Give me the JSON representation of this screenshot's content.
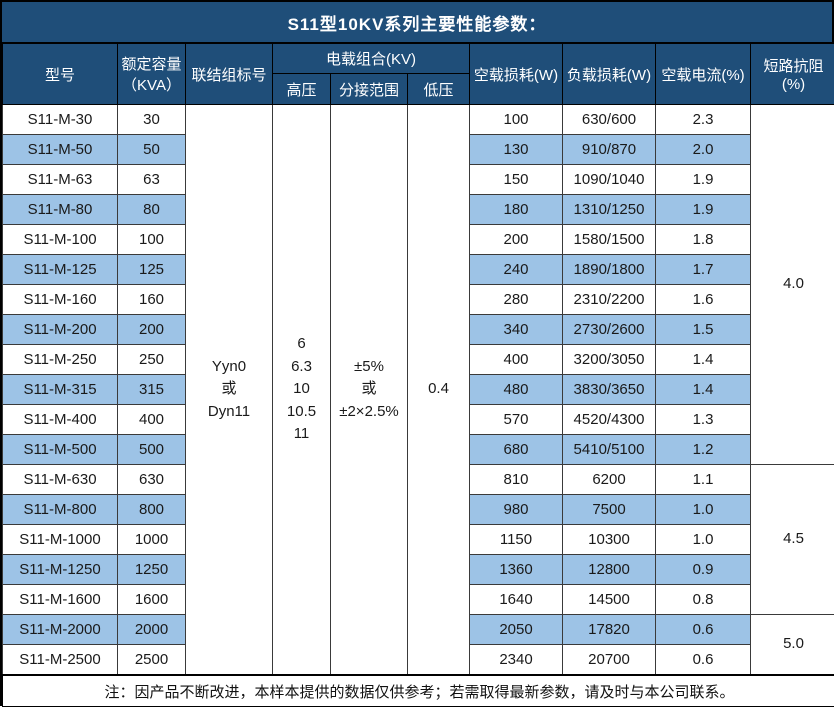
{
  "title": "S11型10KV系列主要性能参数：",
  "colors": {
    "header_bg": "#1F4E79",
    "stripe_bg": "#9DC3E6",
    "border": "#000000",
    "header_text": "#FFFFFF",
    "body_text": "#1A1A1A"
  },
  "header": {
    "model": "型号",
    "capacity_line1": "额定容量",
    "capacity_line2": "（KVA）",
    "connection": "联结组标号",
    "voltage_group": "电载组合(KV)",
    "high_voltage": "高压",
    "tap_range": "分接范围",
    "low_voltage": "低压",
    "no_load_loss": "空载损耗(W)",
    "load_loss": "负载损耗(W)",
    "no_load_current": "空载电流(%)",
    "impedance": "短路抗阻(%)"
  },
  "merged": {
    "connection_lines": [
      "Yyn0",
      "或",
      "Dyn11"
    ],
    "high_voltage_lines": [
      "6",
      "6.3",
      "10",
      "10.5",
      "11"
    ],
    "tap_range_lines": [
      "±5%",
      "或",
      "±2×2.5%"
    ],
    "low_voltage": "0.4",
    "impedance_blocks": [
      {
        "value": "4.0",
        "rows": 12
      },
      {
        "value": "4.5",
        "rows": 5
      },
      {
        "value": "5.0",
        "rows": 2
      }
    ]
  },
  "rows": [
    {
      "model": "S11-M-30",
      "capacity": "30",
      "no_load_loss": "100",
      "load_loss": "630/600",
      "no_load_current": "2.3"
    },
    {
      "model": "S11-M-50",
      "capacity": "50",
      "no_load_loss": "130",
      "load_loss": "910/870",
      "no_load_current": "2.0"
    },
    {
      "model": "S11-M-63",
      "capacity": "63",
      "no_load_loss": "150",
      "load_loss": "1090/1040",
      "no_load_current": "1.9"
    },
    {
      "model": "S11-M-80",
      "capacity": "80",
      "no_load_loss": "180",
      "load_loss": "1310/1250",
      "no_load_current": "1.9"
    },
    {
      "model": "S11-M-100",
      "capacity": "100",
      "no_load_loss": "200",
      "load_loss": "1580/1500",
      "no_load_current": "1.8"
    },
    {
      "model": "S11-M-125",
      "capacity": "125",
      "no_load_loss": "240",
      "load_loss": "1890/1800",
      "no_load_current": "1.7"
    },
    {
      "model": "S11-M-160",
      "capacity": "160",
      "no_load_loss": "280",
      "load_loss": "2310/2200",
      "no_load_current": "1.6"
    },
    {
      "model": "S11-M-200",
      "capacity": "200",
      "no_load_loss": "340",
      "load_loss": "2730/2600",
      "no_load_current": "1.5"
    },
    {
      "model": "S11-M-250",
      "capacity": "250",
      "no_load_loss": "400",
      "load_loss": "3200/3050",
      "no_load_current": "1.4"
    },
    {
      "model": "S11-M-315",
      "capacity": "315",
      "no_load_loss": "480",
      "load_loss": "3830/3650",
      "no_load_current": "1.4"
    },
    {
      "model": "S11-M-400",
      "capacity": "400",
      "no_load_loss": "570",
      "load_loss": "4520/4300",
      "no_load_current": "1.3"
    },
    {
      "model": "S11-M-500",
      "capacity": "500",
      "no_load_loss": "680",
      "load_loss": "5410/5100",
      "no_load_current": "1.2"
    },
    {
      "model": "S11-M-630",
      "capacity": "630",
      "no_load_loss": "810",
      "load_loss": "6200",
      "no_load_current": "1.1"
    },
    {
      "model": "S11-M-800",
      "capacity": "800",
      "no_load_loss": "980",
      "load_loss": "7500",
      "no_load_current": "1.0"
    },
    {
      "model": "S11-M-1000",
      "capacity": "1000",
      "no_load_loss": "1150",
      "load_loss": "10300",
      "no_load_current": "1.0"
    },
    {
      "model": "S11-M-1250",
      "capacity": "1250",
      "no_load_loss": "1360",
      "load_loss": "12800",
      "no_load_current": "0.9"
    },
    {
      "model": "S11-M-1600",
      "capacity": "1600",
      "no_load_loss": "1640",
      "load_loss": "14500",
      "no_load_current": "0.8"
    },
    {
      "model": "S11-M-2000",
      "capacity": "2000",
      "no_load_loss": "2050",
      "load_loss": "17820",
      "no_load_current": "0.6"
    },
    {
      "model": "S11-M-2500",
      "capacity": "2500",
      "no_load_loss": "2340",
      "load_loss": "20700",
      "no_load_current": "0.6"
    }
  ],
  "note": "注：因产品不断改进，本样本提供的数据仅供参考；若需取得最新参数，请及时与本公司联系。"
}
